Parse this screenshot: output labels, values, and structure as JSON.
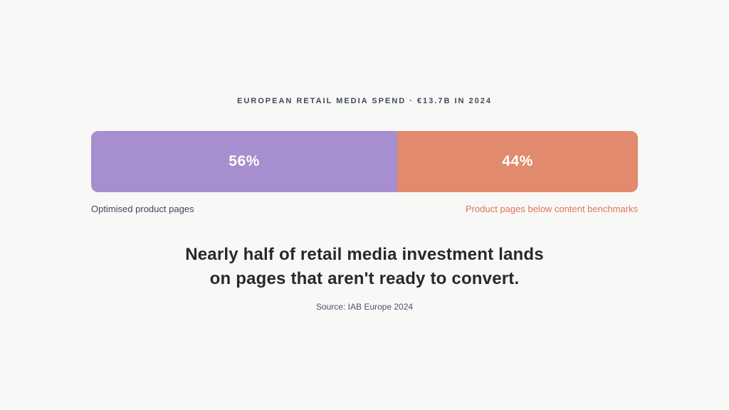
{
  "page": {
    "background_color": "#f8f8f7"
  },
  "chart_data": {
    "type": "bar",
    "variant": "horizontal-stacked-100-percent",
    "title": "EUROPEAN RETAIL MEDIA SPEND · €13.7B IN 2024",
    "categories": [
      "Optimised product pages",
      "Product pages below content benchmarks"
    ],
    "values": [
      56,
      44
    ],
    "unit": "%",
    "grid": false,
    "legend_position": "below-bar",
    "segments": [
      {
        "label": "Optimised product pages",
        "value": 56,
        "value_label": "56%",
        "color": "#a78ece",
        "label_color": "#3d4a5c",
        "value_text_color": "#ffffff"
      },
      {
        "label": "Product pages below content benchmarks",
        "value": 44,
        "value_label": "44%",
        "color": "#e28a6d",
        "label_color": "#e0755a",
        "value_text_color": "#ffffff"
      }
    ]
  },
  "headline": {
    "line1": "Nearly half of retail media investment lands",
    "line2": "on pages that aren't ready to convert."
  },
  "source": {
    "text": "Source: IAB Europe 2024"
  }
}
